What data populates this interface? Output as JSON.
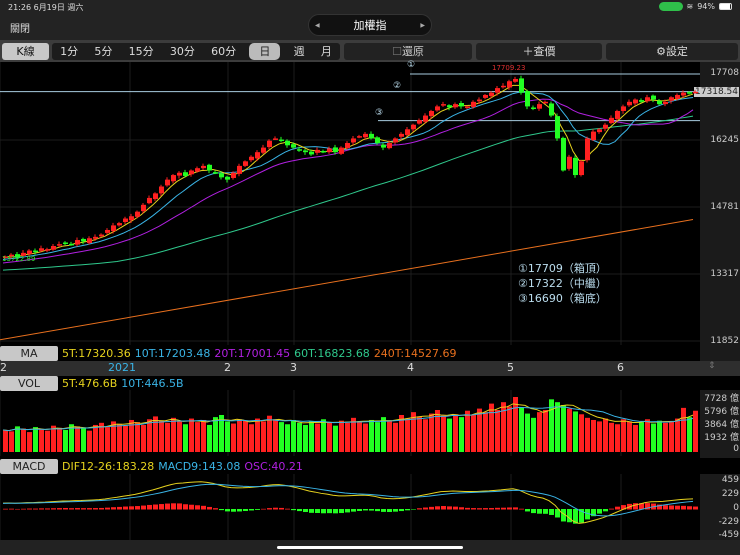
{
  "status": {
    "time": "21:26  6月19日 週六",
    "battery": "94%"
  },
  "header": {
    "close": "關閉",
    "title": "加權指"
  },
  "toolbar": {
    "kline": "K線",
    "periods": [
      "1分",
      "5分",
      "15分",
      "30分",
      "60分",
      "日",
      "週",
      "月"
    ],
    "selected_period": "日",
    "restore": "還原",
    "quote": "查價",
    "settings": "設定"
  },
  "colors": {
    "up": "#ff2020",
    "down": "#22ff22",
    "ma5": "#e6d21e",
    "ma10": "#3ab4e6",
    "ma20": "#b020e0",
    "ma60": "#2fc88c",
    "ma240": "#e8701e",
    "level": "#a8cde0"
  },
  "price_axis": {
    "ticks": [
      17708,
      16245,
      14781,
      13317,
      11852
    ],
    "current": "17318.54",
    "high_label": "17709.23",
    "low_label": "13722.89"
  },
  "levels": [
    {
      "mark": "①",
      "value": 17709,
      "text": "①17709（箱頂）"
    },
    {
      "mark": "②",
      "value": 17322,
      "text": "②17322（中繼）"
    },
    {
      "mark": "③",
      "value": 16690,
      "text": "③16690（箱底）"
    }
  ],
  "ma": {
    "label": "MA",
    "ma5": "5T:17320.36",
    "ma10": "10T:17203.48",
    "ma20": "20T:17001.45",
    "ma60": "60T:16823.68",
    "ma240": "240T:14527.69"
  },
  "x_axis": [
    "2",
    "2021",
    "2",
    "3",
    "4",
    "5",
    "6"
  ],
  "vol": {
    "label": "VOL",
    "ma5": "5T:476.6B",
    "ma10": "10T:446.5B",
    "ticks": [
      "7728 億",
      "5796 億",
      "3864 億",
      "1932 億",
      "0"
    ]
  },
  "macd": {
    "label": "MACD",
    "dif": "DIF12-26:183.28",
    "macd9": "MACD9:143.08",
    "osc": "OSC:40.21",
    "ticks": [
      "459",
      "229",
      "0",
      "-229",
      "-459"
    ]
  },
  "chart_data": {
    "type": "candlestick",
    "close": [
      13722,
      13760,
      13700,
      13800,
      13850,
      13820,
      13900,
      13880,
      13950,
      13990,
      14020,
      13980,
      14080,
      14050,
      14120,
      14150,
      14200,
      14300,
      14400,
      14450,
      14550,
      14600,
      14700,
      14850,
      15000,
      15100,
      15250,
      15400,
      15500,
      15550,
      15480,
      15600,
      15650,
      15700,
      15600,
      15550,
      15450,
      15400,
      15550,
      15700,
      15800,
      15900,
      16000,
      16100,
      16250,
      16300,
      16250,
      16150,
      16100,
      16050,
      16000,
      15950,
      16050,
      16000,
      16080,
      16000,
      16100,
      16200,
      16300,
      16350,
      16400,
      16300,
      16200,
      16100,
      16200,
      16300,
      16400,
      16500,
      16600,
      16700,
      16800,
      16900,
      17000,
      17050,
      16980,
      17050,
      17000,
      17000,
      17100,
      17150,
      17250,
      17300,
      17400,
      17450,
      17550,
      17600,
      17300,
      17000,
      16950,
      17050,
      17100,
      16800,
      16300,
      15600,
      15900,
      15500,
      15800,
      16300,
      16450,
      16500,
      16600,
      16750,
      16900,
      17000,
      17100,
      17150,
      17100,
      17200,
      17150,
      17050,
      17100,
      17200,
      17250,
      17300,
      17280,
      17320
    ],
    "volume": [
      3100,
      2900,
      3600,
      3300,
      2800,
      3500,
      3200,
      3000,
      3700,
      3400,
      3100,
      3900,
      3600,
      3300,
      3000,
      3800,
      4100,
      3500,
      4300,
      3900,
      3700,
      4500,
      4200,
      3800,
      4600,
      5000,
      4400,
      4100,
      4800,
      4300,
      3900,
      4700,
      4200,
      4500,
      3800,
      4900,
      5200,
      4300,
      4000,
      4600,
      4400,
      3900,
      4700,
      4300,
      5100,
      4600,
      4200,
      3900,
      4500,
      4100,
      3800,
      4300,
      4000,
      4600,
      4200,
      3700,
      4400,
      4100,
      4800,
      4300,
      4000,
      4500,
      4200,
      4900,
      4400,
      4100,
      5200,
      4700,
      5600,
      5000,
      4600,
      5400,
      5900,
      5100,
      4700,
      5300,
      4900,
      5800,
      5200,
      6100,
      5600,
      6800,
      5900,
      7000,
      6400,
      7728,
      6200,
      5400,
      4800,
      5600,
      5900,
      7400,
      7000,
      6600,
      6100,
      5700,
      5300,
      4800,
      4500,
      4300,
      4700,
      4100,
      3900,
      4600,
      4300,
      3800,
      4200,
      4600,
      4000,
      4400,
      4100,
      4300,
      4700,
      6200,
      4900,
      5796
    ],
    "ma240_range": [
      11900,
      14527.69
    ]
  }
}
